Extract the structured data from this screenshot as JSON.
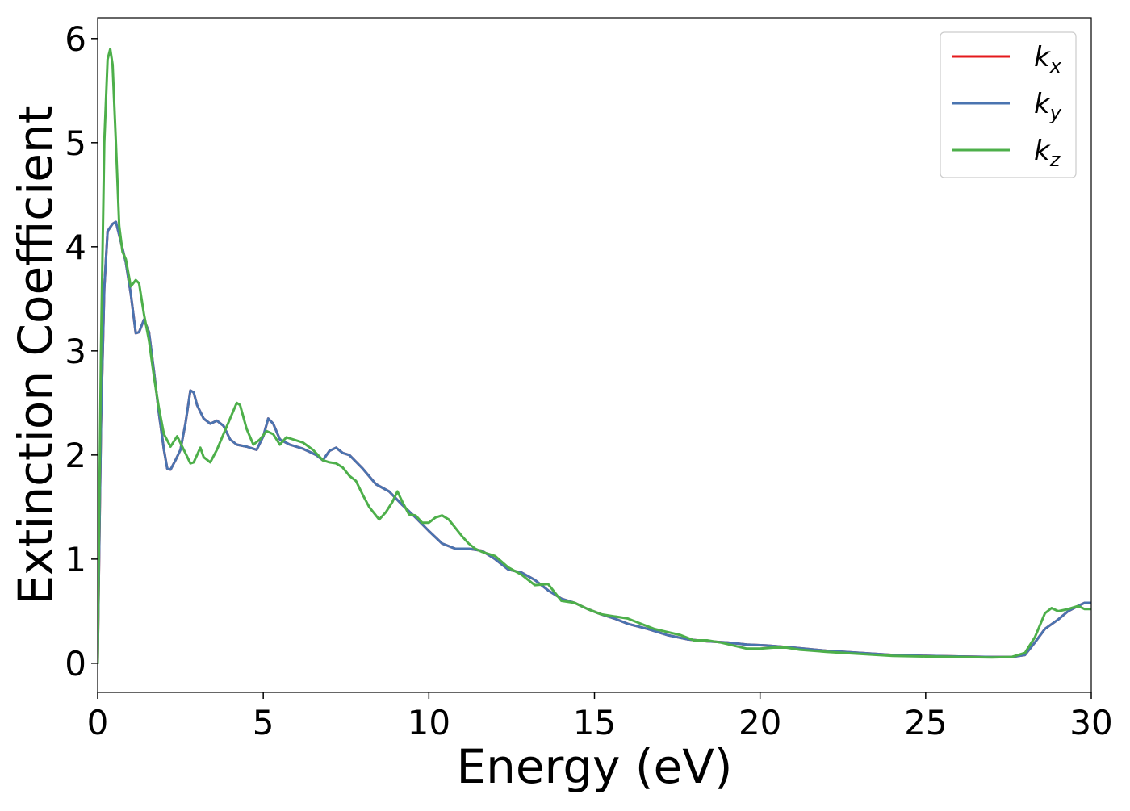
{
  "chart_data": {
    "type": "line",
    "title": "",
    "xlabel": "Energy (eV)",
    "ylabel": "Extinction Coefficient",
    "xlim": [
      0,
      30
    ],
    "ylim": [
      -0.28,
      6.2
    ],
    "xticks": [
      0,
      5,
      10,
      15,
      20,
      25,
      30
    ],
    "yticks": [
      0,
      1,
      2,
      3,
      4,
      5,
      6
    ],
    "grid": false,
    "legend_position": "top-right",
    "series": [
      {
        "name": "k",
        "subscript": "x",
        "color": "#e41a1c",
        "points": [
          [
            0,
            0
          ],
          [
            0.1,
            2.3
          ],
          [
            0.2,
            3.6
          ],
          [
            0.3,
            4.15
          ],
          [
            0.45,
            4.22
          ],
          [
            0.55,
            4.24
          ],
          [
            0.7,
            4.05
          ],
          [
            0.85,
            3.85
          ],
          [
            1.0,
            3.55
          ],
          [
            1.15,
            3.17
          ],
          [
            1.25,
            3.18
          ],
          [
            1.4,
            3.3
          ],
          [
            1.55,
            3.18
          ],
          [
            1.7,
            2.8
          ],
          [
            1.85,
            2.4
          ],
          [
            2.0,
            2.05
          ],
          [
            2.1,
            1.87
          ],
          [
            2.2,
            1.86
          ],
          [
            2.35,
            1.95
          ],
          [
            2.5,
            2.05
          ],
          [
            2.65,
            2.3
          ],
          [
            2.8,
            2.62
          ],
          [
            2.9,
            2.6
          ],
          [
            3.0,
            2.48
          ],
          [
            3.2,
            2.35
          ],
          [
            3.4,
            2.3
          ],
          [
            3.6,
            2.33
          ],
          [
            3.8,
            2.28
          ],
          [
            4.0,
            2.15
          ],
          [
            4.2,
            2.1
          ],
          [
            4.5,
            2.08
          ],
          [
            4.8,
            2.05
          ],
          [
            5.0,
            2.18
          ],
          [
            5.15,
            2.35
          ],
          [
            5.3,
            2.3
          ],
          [
            5.5,
            2.15
          ],
          [
            5.8,
            2.1
          ],
          [
            6.2,
            2.06
          ],
          [
            6.6,
            2.0
          ],
          [
            6.8,
            1.95
          ],
          [
            7.0,
            2.04
          ],
          [
            7.2,
            2.07
          ],
          [
            7.4,
            2.02
          ],
          [
            7.6,
            2.0
          ],
          [
            8.0,
            1.87
          ],
          [
            8.4,
            1.72
          ],
          [
            8.8,
            1.65
          ],
          [
            9.2,
            1.52
          ],
          [
            9.6,
            1.4
          ],
          [
            10.0,
            1.27
          ],
          [
            10.4,
            1.15
          ],
          [
            10.8,
            1.1
          ],
          [
            11.2,
            1.1
          ],
          [
            11.6,
            1.08
          ],
          [
            12.0,
            1.0
          ],
          [
            12.4,
            0.9
          ],
          [
            12.8,
            0.87
          ],
          [
            13.2,
            0.8
          ],
          [
            13.6,
            0.7
          ],
          [
            14.0,
            0.62
          ],
          [
            14.4,
            0.58
          ],
          [
            14.8,
            0.52
          ],
          [
            15.2,
            0.47
          ],
          [
            15.6,
            0.43
          ],
          [
            16.0,
            0.38
          ],
          [
            16.6,
            0.33
          ],
          [
            17.2,
            0.27
          ],
          [
            17.8,
            0.23
          ],
          [
            18.4,
            0.21
          ],
          [
            19.0,
            0.2
          ],
          [
            19.6,
            0.18
          ],
          [
            20.2,
            0.17
          ],
          [
            21.0,
            0.15
          ],
          [
            22.0,
            0.12
          ],
          [
            23.0,
            0.1
          ],
          [
            24.0,
            0.08
          ],
          [
            25.0,
            0.07
          ],
          [
            26.0,
            0.065
          ],
          [
            27.0,
            0.06
          ],
          [
            27.6,
            0.06
          ],
          [
            28.0,
            0.08
          ],
          [
            28.3,
            0.2
          ],
          [
            28.6,
            0.33
          ],
          [
            29.0,
            0.42
          ],
          [
            29.3,
            0.5
          ],
          [
            29.6,
            0.55
          ],
          [
            29.8,
            0.58
          ],
          [
            30.0,
            0.58
          ]
        ]
      },
      {
        "name": "k",
        "subscript": "y",
        "color": "#4a74b0",
        "points": [
          [
            0,
            0
          ],
          [
            0.1,
            2.3
          ],
          [
            0.2,
            3.6
          ],
          [
            0.3,
            4.15
          ],
          [
            0.45,
            4.22
          ],
          [
            0.55,
            4.24
          ],
          [
            0.7,
            4.05
          ],
          [
            0.85,
            3.85
          ],
          [
            1.0,
            3.55
          ],
          [
            1.15,
            3.17
          ],
          [
            1.25,
            3.18
          ],
          [
            1.4,
            3.3
          ],
          [
            1.55,
            3.18
          ],
          [
            1.7,
            2.8
          ],
          [
            1.85,
            2.4
          ],
          [
            2.0,
            2.05
          ],
          [
            2.1,
            1.87
          ],
          [
            2.2,
            1.86
          ],
          [
            2.35,
            1.95
          ],
          [
            2.5,
            2.05
          ],
          [
            2.65,
            2.3
          ],
          [
            2.8,
            2.62
          ],
          [
            2.9,
            2.6
          ],
          [
            3.0,
            2.48
          ],
          [
            3.2,
            2.35
          ],
          [
            3.4,
            2.3
          ],
          [
            3.6,
            2.33
          ],
          [
            3.8,
            2.28
          ],
          [
            4.0,
            2.15
          ],
          [
            4.2,
            2.1
          ],
          [
            4.5,
            2.08
          ],
          [
            4.8,
            2.05
          ],
          [
            5.0,
            2.18
          ],
          [
            5.15,
            2.35
          ],
          [
            5.3,
            2.3
          ],
          [
            5.5,
            2.15
          ],
          [
            5.8,
            2.1
          ],
          [
            6.2,
            2.06
          ],
          [
            6.6,
            2.0
          ],
          [
            6.8,
            1.95
          ],
          [
            7.0,
            2.04
          ],
          [
            7.2,
            2.07
          ],
          [
            7.4,
            2.02
          ],
          [
            7.6,
            2.0
          ],
          [
            8.0,
            1.87
          ],
          [
            8.4,
            1.72
          ],
          [
            8.8,
            1.65
          ],
          [
            9.2,
            1.52
          ],
          [
            9.6,
            1.4
          ],
          [
            10.0,
            1.27
          ],
          [
            10.4,
            1.15
          ],
          [
            10.8,
            1.1
          ],
          [
            11.2,
            1.1
          ],
          [
            11.6,
            1.08
          ],
          [
            12.0,
            1.0
          ],
          [
            12.4,
            0.9
          ],
          [
            12.8,
            0.87
          ],
          [
            13.2,
            0.8
          ],
          [
            13.6,
            0.7
          ],
          [
            14.0,
            0.62
          ],
          [
            14.4,
            0.58
          ],
          [
            14.8,
            0.52
          ],
          [
            15.2,
            0.47
          ],
          [
            15.6,
            0.43
          ],
          [
            16.0,
            0.38
          ],
          [
            16.6,
            0.33
          ],
          [
            17.2,
            0.27
          ],
          [
            17.8,
            0.23
          ],
          [
            18.4,
            0.21
          ],
          [
            19.0,
            0.2
          ],
          [
            19.6,
            0.18
          ],
          [
            20.2,
            0.17
          ],
          [
            21.0,
            0.15
          ],
          [
            22.0,
            0.12
          ],
          [
            23.0,
            0.1
          ],
          [
            24.0,
            0.08
          ],
          [
            25.0,
            0.07
          ],
          [
            26.0,
            0.065
          ],
          [
            27.0,
            0.06
          ],
          [
            27.6,
            0.06
          ],
          [
            28.0,
            0.08
          ],
          [
            28.3,
            0.2
          ],
          [
            28.6,
            0.33
          ],
          [
            29.0,
            0.42
          ],
          [
            29.3,
            0.5
          ],
          [
            29.6,
            0.55
          ],
          [
            29.8,
            0.58
          ],
          [
            30.0,
            0.58
          ]
        ]
      },
      {
        "name": "k",
        "subscript": "z",
        "color": "#4daf4a",
        "points": [
          [
            0,
            0
          ],
          [
            0.1,
            3.0
          ],
          [
            0.2,
            5.0
          ],
          [
            0.3,
            5.8
          ],
          [
            0.38,
            5.9
          ],
          [
            0.45,
            5.75
          ],
          [
            0.55,
            5.0
          ],
          [
            0.65,
            4.2
          ],
          [
            0.75,
            3.95
          ],
          [
            0.85,
            3.88
          ],
          [
            1.0,
            3.62
          ],
          [
            1.15,
            3.68
          ],
          [
            1.25,
            3.65
          ],
          [
            1.4,
            3.35
          ],
          [
            1.55,
            3.1
          ],
          [
            1.7,
            2.75
          ],
          [
            1.85,
            2.45
          ],
          [
            2.0,
            2.2
          ],
          [
            2.2,
            2.08
          ],
          [
            2.4,
            2.18
          ],
          [
            2.6,
            2.05
          ],
          [
            2.8,
            1.92
          ],
          [
            2.9,
            1.93
          ],
          [
            3.0,
            2.0
          ],
          [
            3.1,
            2.07
          ],
          [
            3.2,
            1.98
          ],
          [
            3.4,
            1.93
          ],
          [
            3.6,
            2.05
          ],
          [
            3.8,
            2.2
          ],
          [
            4.0,
            2.35
          ],
          [
            4.2,
            2.5
          ],
          [
            4.3,
            2.48
          ],
          [
            4.5,
            2.25
          ],
          [
            4.7,
            2.1
          ],
          [
            4.9,
            2.15
          ],
          [
            5.1,
            2.23
          ],
          [
            5.3,
            2.2
          ],
          [
            5.5,
            2.1
          ],
          [
            5.7,
            2.17
          ],
          [
            5.9,
            2.15
          ],
          [
            6.2,
            2.12
          ],
          [
            6.5,
            2.05
          ],
          [
            6.8,
            1.95
          ],
          [
            7.0,
            1.93
          ],
          [
            7.2,
            1.92
          ],
          [
            7.4,
            1.88
          ],
          [
            7.6,
            1.8
          ],
          [
            7.8,
            1.75
          ],
          [
            8.0,
            1.62
          ],
          [
            8.2,
            1.5
          ],
          [
            8.5,
            1.38
          ],
          [
            8.7,
            1.45
          ],
          [
            8.9,
            1.55
          ],
          [
            9.05,
            1.65
          ],
          [
            9.2,
            1.55
          ],
          [
            9.4,
            1.43
          ],
          [
            9.6,
            1.42
          ],
          [
            9.8,
            1.35
          ],
          [
            10.0,
            1.35
          ],
          [
            10.2,
            1.4
          ],
          [
            10.4,
            1.42
          ],
          [
            10.6,
            1.38
          ],
          [
            10.8,
            1.3
          ],
          [
            11.0,
            1.22
          ],
          [
            11.2,
            1.15
          ],
          [
            11.4,
            1.1
          ],
          [
            11.6,
            1.07
          ],
          [
            12.0,
            1.03
          ],
          [
            12.4,
            0.92
          ],
          [
            12.8,
            0.85
          ],
          [
            13.2,
            0.75
          ],
          [
            13.6,
            0.76
          ],
          [
            14.0,
            0.6
          ],
          [
            14.4,
            0.58
          ],
          [
            14.8,
            0.52
          ],
          [
            15.2,
            0.47
          ],
          [
            15.6,
            0.45
          ],
          [
            16.0,
            0.43
          ],
          [
            16.4,
            0.38
          ],
          [
            16.8,
            0.33
          ],
          [
            17.2,
            0.3
          ],
          [
            17.6,
            0.27
          ],
          [
            18.0,
            0.22
          ],
          [
            18.4,
            0.22
          ],
          [
            18.8,
            0.2
          ],
          [
            19.2,
            0.17
          ],
          [
            19.6,
            0.14
          ],
          [
            20.0,
            0.14
          ],
          [
            20.4,
            0.15
          ],
          [
            20.8,
            0.15
          ],
          [
            21.2,
            0.13
          ],
          [
            22.0,
            0.11
          ],
          [
            23.0,
            0.09
          ],
          [
            24.0,
            0.07
          ],
          [
            25.0,
            0.065
          ],
          [
            26.0,
            0.06
          ],
          [
            27.0,
            0.055
          ],
          [
            27.6,
            0.06
          ],
          [
            28.0,
            0.1
          ],
          [
            28.3,
            0.25
          ],
          [
            28.6,
            0.48
          ],
          [
            28.8,
            0.53
          ],
          [
            29.0,
            0.5
          ],
          [
            29.3,
            0.52
          ],
          [
            29.6,
            0.55
          ],
          [
            29.8,
            0.52
          ],
          [
            30.0,
            0.52
          ]
        ]
      }
    ]
  }
}
